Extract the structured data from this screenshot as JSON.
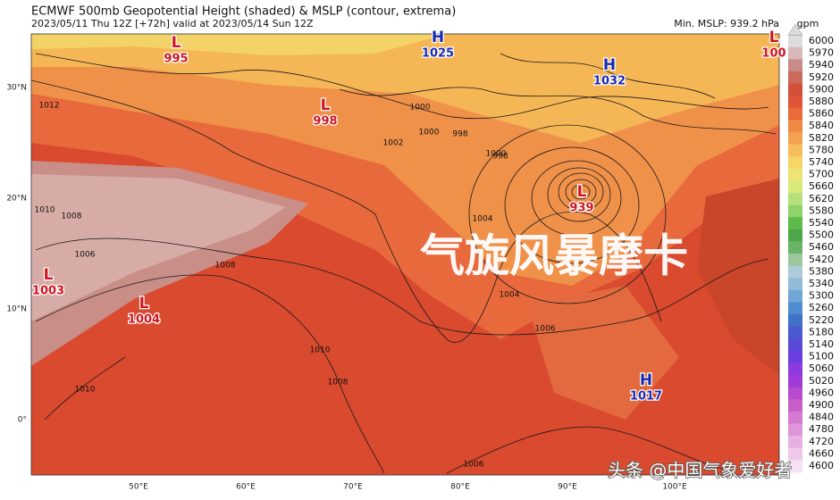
{
  "header": {
    "title": "ECMWF 500mb Geopotential Height (shaded) & MSLP (contour, extrema)",
    "subtitle": "2023/05/11 Thu 12Z [+72h] valid at 2023/05/14 Sun 12Z",
    "min_mslp": "Min. MSLP: 939.2 hPa"
  },
  "colorbar": {
    "unit": "gpm",
    "levels": [
      6000,
      5970,
      5940,
      5920,
      5900,
      5880,
      5860,
      5840,
      5820,
      5780,
      5740,
      5700,
      5660,
      5620,
      5580,
      5540,
      5500,
      5460,
      5420,
      5380,
      5340,
      5300,
      5260,
      5220,
      5180,
      5140,
      5100,
      5060,
      5020,
      4960,
      4900,
      4840,
      4780,
      4720,
      4660,
      4600
    ],
    "colors": [
      "#dcdcdc",
      "#d9b8b8",
      "#c98a8a",
      "#c96a5a",
      "#d2503a",
      "#e0553a",
      "#ea6a3a",
      "#ef8a45",
      "#f4a24f",
      "#f7bd5a",
      "#f5d566",
      "#eee576",
      "#d8ea7a",
      "#b8e07a",
      "#8fd36a",
      "#5dbb4a",
      "#4ea84a",
      "#6ab46a",
      "#9cc69c",
      "#aecbd9",
      "#90bcd9",
      "#6fa6d6",
      "#4f8dd0",
      "#3f72c6",
      "#4a5ad0",
      "#5a4ad8",
      "#6a3ee0",
      "#8a3ae0",
      "#a03ad8",
      "#b84ad0",
      "#c85ec8",
      "#d47ad0",
      "#de96d8",
      "#e6b0e0",
      "#efc8ea",
      "#f6e0f4"
    ]
  },
  "lat_labels": [
    "30°N",
    "20°N",
    "10°N",
    "0°"
  ],
  "lon_labels": [
    "50°E",
    "60°E",
    "70°E",
    "80°E",
    "90°E",
    "100°E"
  ],
  "centers": [
    {
      "type": "L",
      "value": 995
    },
    {
      "type": "L",
      "value": 998
    },
    {
      "type": "H",
      "value": 1025
    },
    {
      "type": "H",
      "value": 1032
    },
    {
      "type": "L",
      "value": 939
    },
    {
      "type": "L",
      "value": 1003
    },
    {
      "type": "L",
      "value": 1004
    },
    {
      "type": "H",
      "value": 1017
    },
    {
      "type": "L",
      "value": 100
    }
  ],
  "contour_labels": [
    1000,
    998,
    1002,
    1000,
    998,
    1000,
    1004,
    1006,
    1008,
    1010,
    1012,
    1008,
    1010,
    1006,
    1008,
    1006,
    1004,
    1010
  ],
  "overlay": "气旋风暴摩卡",
  "watermark": "头条 @中国气象爱好者"
}
